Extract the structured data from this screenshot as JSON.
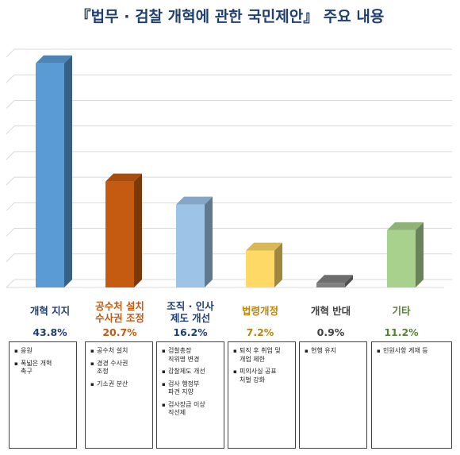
{
  "title": "『법무 · 검찰 개혁에 관한 국민제안』 주요 내용",
  "chart_data": {
    "type": "bar",
    "categories": [
      "개혁 지지",
      "공수처 설치\n수사권 조정",
      "조직 · 인사\n제도 개선",
      "법령개정",
      "개혁 반대",
      "기타"
    ],
    "values": [
      43.8,
      20.7,
      16.2,
      7.2,
      0.9,
      11.2
    ],
    "value_labels": [
      "43.8%",
      "20.7%",
      "16.2%",
      "7.2%",
      "0.9%",
      "11.2%"
    ],
    "ylim": [
      0,
      45
    ],
    "grid": true,
    "colors": [
      "#5b9bd5",
      "#c55a11",
      "#9dc3e6",
      "#ffd966",
      "#808080",
      "#a9d18e"
    ],
    "label_colors": [
      "#1f3f73",
      "#c55a11",
      "#1f3f73",
      "#b8860b",
      "#404040",
      "#548235"
    ],
    "pct_colors": [
      "#1f3f73",
      "#c55a11",
      "#1f3f73",
      "#b8860b",
      "#404040",
      "#548235"
    ]
  },
  "details": [
    [
      "응원",
      "폭넓은 개혁\n촉구"
    ],
    [
      "공수처 설치",
      "경경 수사권\n조정",
      "기소권 분산"
    ],
    [
      "검찰총장\n직위명 변경",
      "감찰제도 개선",
      "검사 행정부\n파견 지양",
      "검사장급 이상\n직선제"
    ],
    [
      "퇴직 후 취업 및\n개업 제한",
      "피의사실 공표\n처벌 강화"
    ],
    [
      "현행 유지"
    ],
    [
      "민원사항 게재 등"
    ]
  ]
}
